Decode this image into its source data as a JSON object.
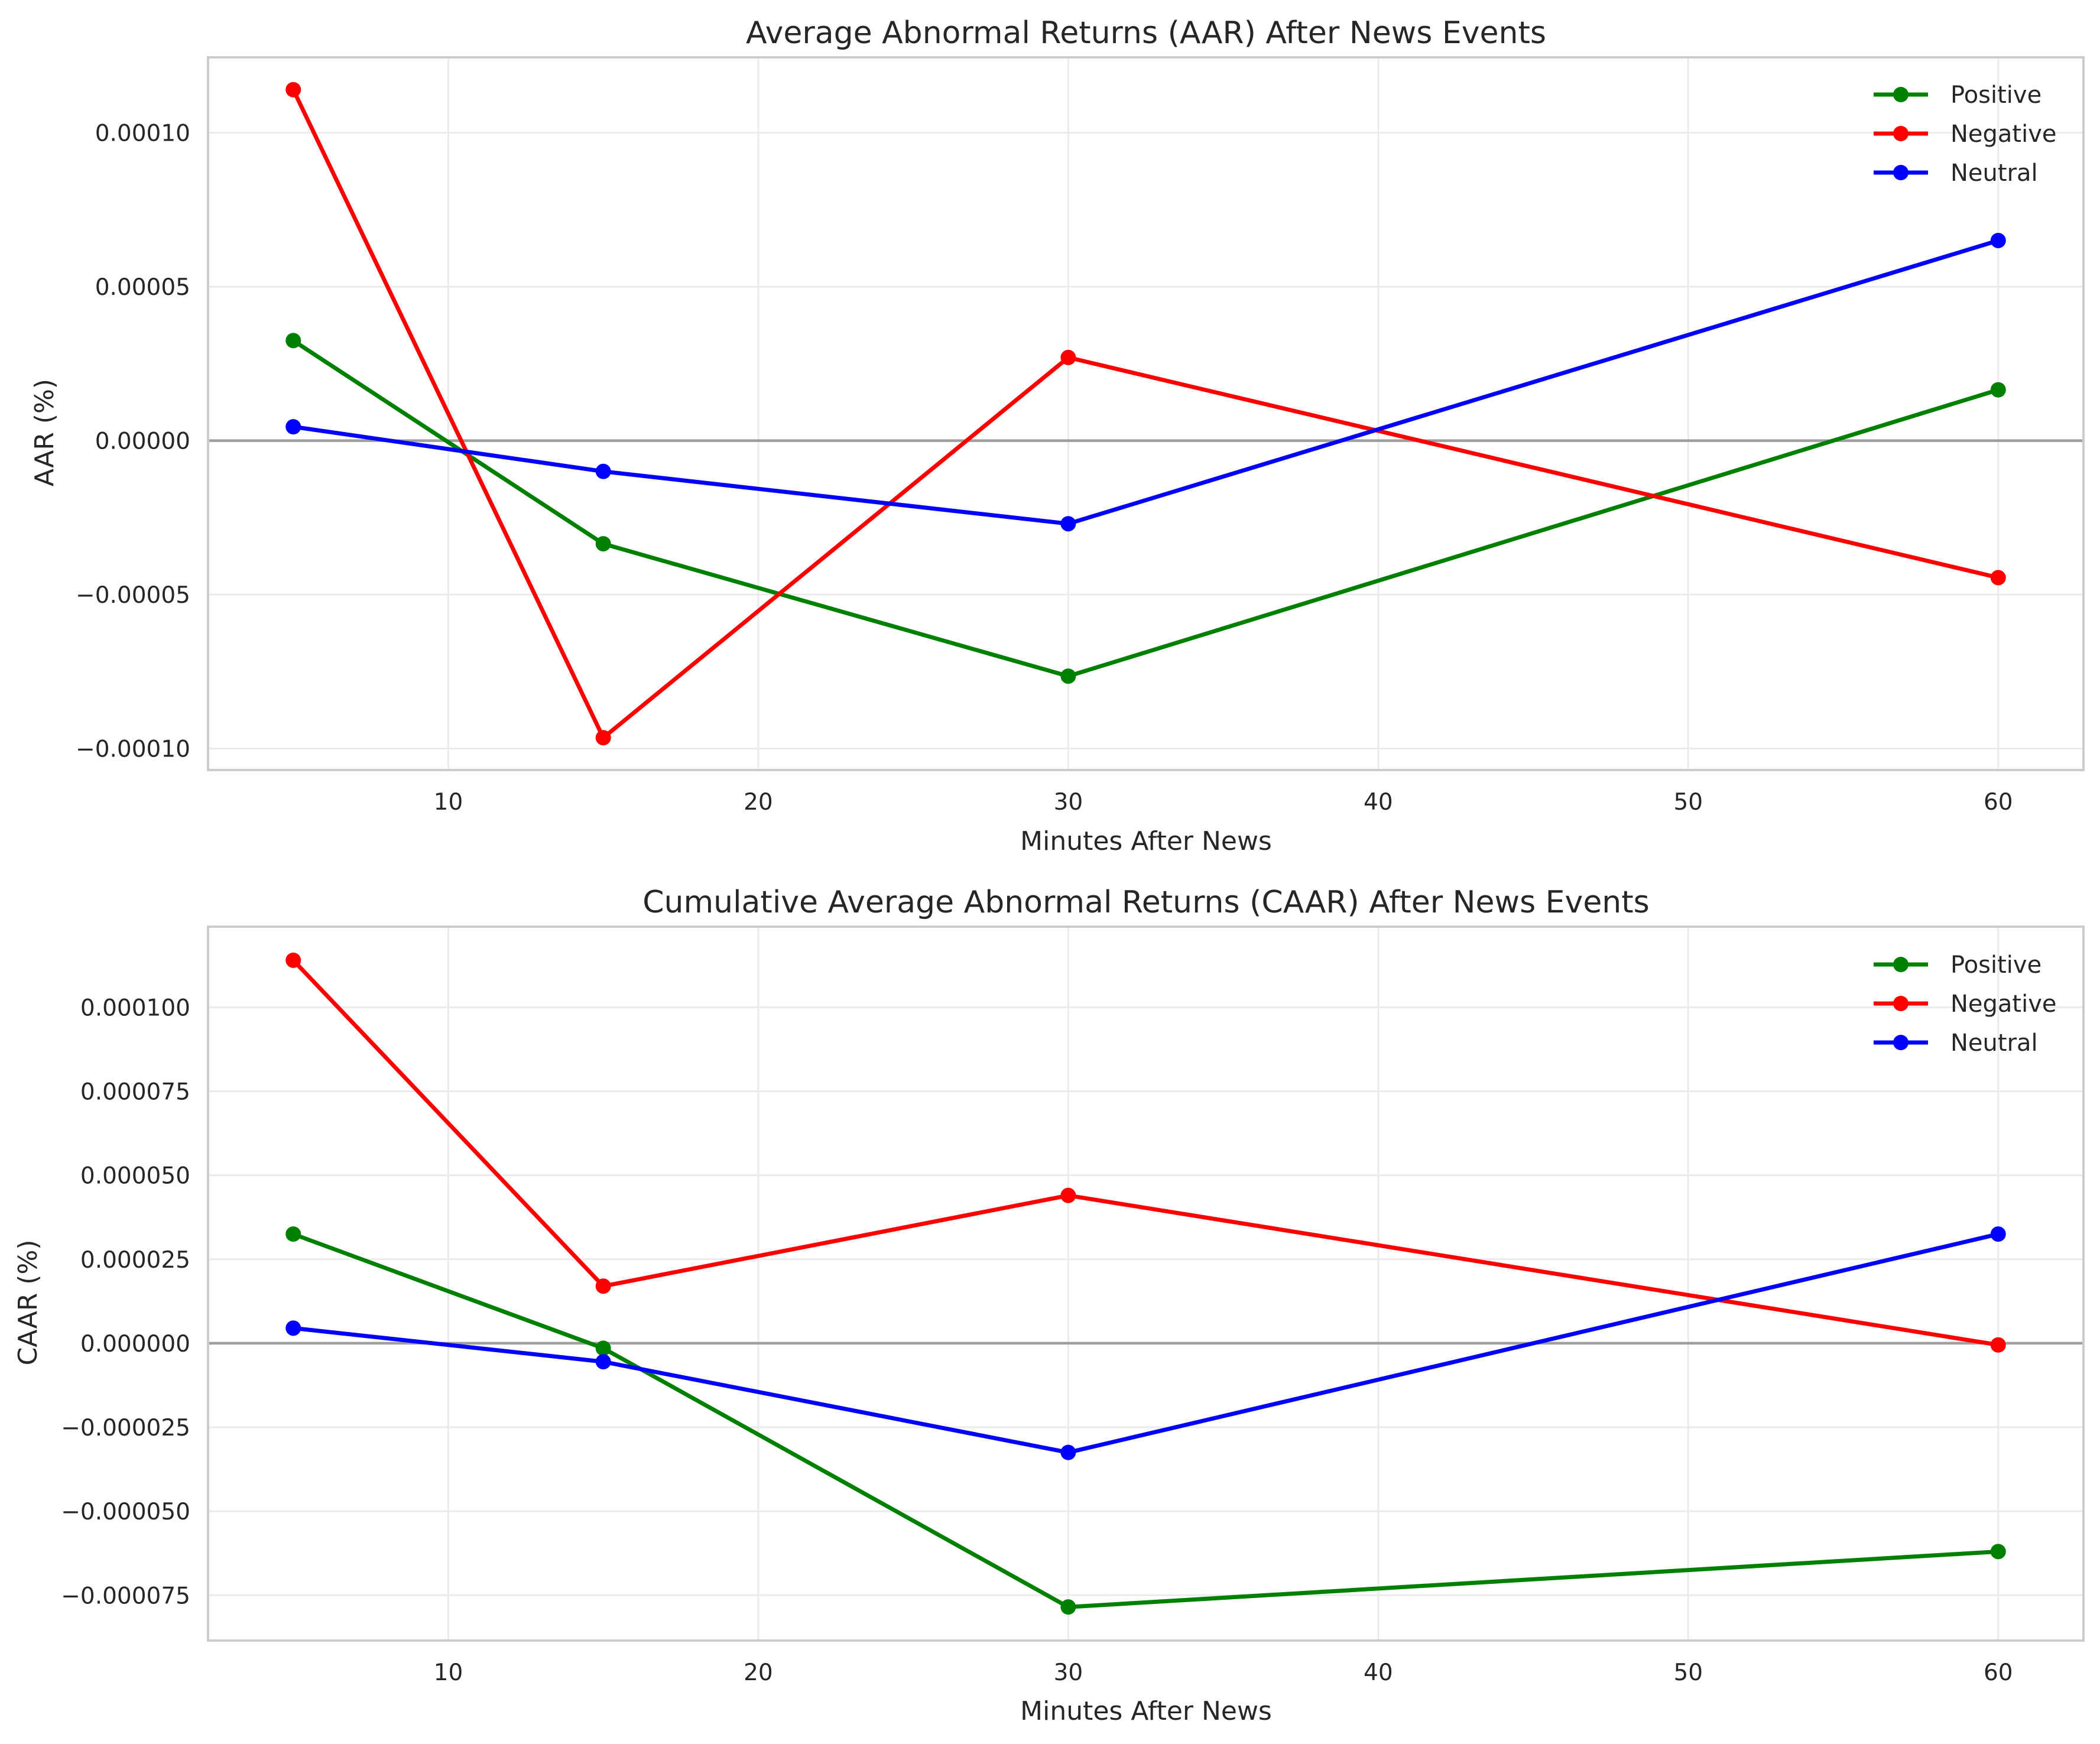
{
  "chart_data": [
    {
      "type": "line",
      "title": "Average Abnormal Returns (AAR) After News Events",
      "xlabel": "Minutes After News",
      "ylabel": "AAR (%)",
      "x": [
        5,
        15,
        30,
        60
      ],
      "xlim": [
        2.25,
        62.75
      ],
      "ylim": [
        -0.000107,
        0.0001245
      ],
      "xticks": [
        10,
        20,
        30,
        40,
        50,
        60
      ],
      "xtick_labels": [
        "10",
        "20",
        "30",
        "40",
        "50",
        "60"
      ],
      "yticks": [
        0.0001,
        5e-05,
        0,
        -5e-05,
        -0.0001
      ],
      "ytick_labels": [
        "0.00010",
        "0.00005",
        "0.00000",
        "−0.00005",
        "−0.00010"
      ],
      "zero_line": true,
      "grid": true,
      "legend_position": "top-right",
      "series": [
        {
          "name": "Positive",
          "color": "#008000",
          "values": [
            3.25e-05,
            -3.35e-05,
            -7.65e-05,
            1.65e-05
          ]
        },
        {
          "name": "Negative",
          "color": "#ff0000",
          "values": [
            0.000114,
            -9.65e-05,
            2.7e-05,
            -4.45e-05
          ]
        },
        {
          "name": "Neutral",
          "color": "#0000ff",
          "values": [
            4.5e-06,
            -1e-05,
            -2.7e-05,
            6.5e-05
          ]
        }
      ]
    },
    {
      "type": "line",
      "title": "Cumulative Average Abnormal Returns (CAAR) After News Events",
      "xlabel": "Minutes After News",
      "ylabel": "CAAR (%)",
      "x": [
        5,
        15,
        30,
        60
      ],
      "xlim": [
        2.25,
        62.75
      ],
      "ylim": [
        -8.85e-05,
        0.000124
      ],
      "xticks": [
        10,
        20,
        30,
        40,
        50,
        60
      ],
      "xtick_labels": [
        "10",
        "20",
        "30",
        "40",
        "50",
        "60"
      ],
      "yticks": [
        0.0001,
        7.5e-05,
        5e-05,
        2.5e-05,
        0,
        -2.5e-05,
        -5e-05,
        -7.5e-05
      ],
      "ytick_labels": [
        "0.000100",
        "0.000075",
        "0.000050",
        "0.000025",
        "0.000000",
        "−0.000025",
        "−0.000050",
        "−0.000075"
      ],
      "zero_line": true,
      "grid": true,
      "legend_position": "top-right",
      "series": [
        {
          "name": "Positive",
          "color": "#008000",
          "values": [
            3.25e-05,
            -1.5e-06,
            -7.85e-05,
            -6.2e-05
          ]
        },
        {
          "name": "Negative",
          "color": "#ff0000",
          "values": [
            0.000114,
            1.7e-05,
            4.4e-05,
            -5e-07
          ]
        },
        {
          "name": "Neutral",
          "color": "#0000ff",
          "values": [
            4.5e-06,
            -5.5e-06,
            -3.25e-05,
            3.25e-05
          ]
        }
      ]
    }
  ]
}
